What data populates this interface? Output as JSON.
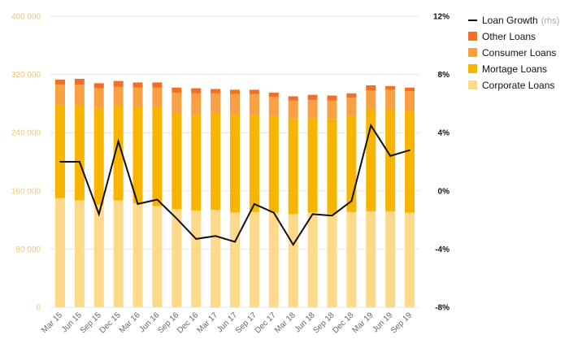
{
  "chart_data": {
    "type": "bar",
    "stacked": true,
    "categories": [
      "Mar 15",
      "Jun 15",
      "Sep 15",
      "Dec 15",
      "Mar 16",
      "Jun 16",
      "Sep 16",
      "Dec 16",
      "Mar 17",
      "Jun 17",
      "Sep 17",
      "Dec 17",
      "Mar 18",
      "Jun 18",
      "Sep 18",
      "Dec 18",
      "Mar 19",
      "Jun 19",
      "Sep 19"
    ],
    "series": [
      {
        "name": "Corporate Loans",
        "color": "#ffd98a",
        "values": [
          150000,
          147000,
          141000,
          147000,
          143000,
          139000,
          135000,
          133000,
          134000,
          130000,
          131000,
          130000,
          128000,
          130000,
          128000,
          131000,
          132000,
          132000,
          130000
        ]
      },
      {
        "name": "Mortage Loans",
        "color": "#f7b500",
        "values": [
          128000,
          130000,
          133000,
          130000,
          132000,
          136000,
          132000,
          132000,
          132000,
          134000,
          134000,
          133000,
          131000,
          130000,
          131000,
          132000,
          140000,
          139000,
          140000
        ]
      },
      {
        "name": "Consumer Loans",
        "color": "#f9a043",
        "values": [
          28000,
          29000,
          27000,
          26000,
          27000,
          27000,
          28000,
          29000,
          28000,
          29000,
          28000,
          26000,
          25000,
          25000,
          25000,
          25000,
          26000,
          28000,
          27000
        ]
      },
      {
        "name": "Other Loans",
        "color": "#f26f25",
        "values": [
          7000,
          8000,
          7000,
          8000,
          7000,
          7000,
          7000,
          7000,
          6000,
          6000,
          6000,
          6000,
          6000,
          7000,
          7000,
          6000,
          7000,
          5000,
          5000
        ]
      }
    ],
    "line_series": {
      "name": "Loan Growth",
      "suffix": "(rhs)",
      "axis": "right",
      "color": "#111111",
      "values": [
        2.0,
        2.0,
        -1.6,
        3.4,
        -0.9,
        -0.6,
        -1.9,
        -3.3,
        -3.1,
        -3.5,
        -0.9,
        -1.5,
        -3.7,
        -1.6,
        -1.7,
        -0.7,
        4.5,
        2.4,
        2.8
      ]
    },
    "y_left": {
      "min": 0,
      "max": 400000,
      "ticks": [
        "0",
        "80 000",
        "160 000",
        "240 000",
        "320 000",
        "400 000"
      ]
    },
    "y_right": {
      "min": -8,
      "max": 12,
      "ticks": [
        "-8%",
        "-4%",
        "0%",
        "4%",
        "8%",
        "12%"
      ]
    },
    "grid": true,
    "legend_position": "top-right",
    "title": "",
    "xlabel": "",
    "ylabel": ""
  }
}
